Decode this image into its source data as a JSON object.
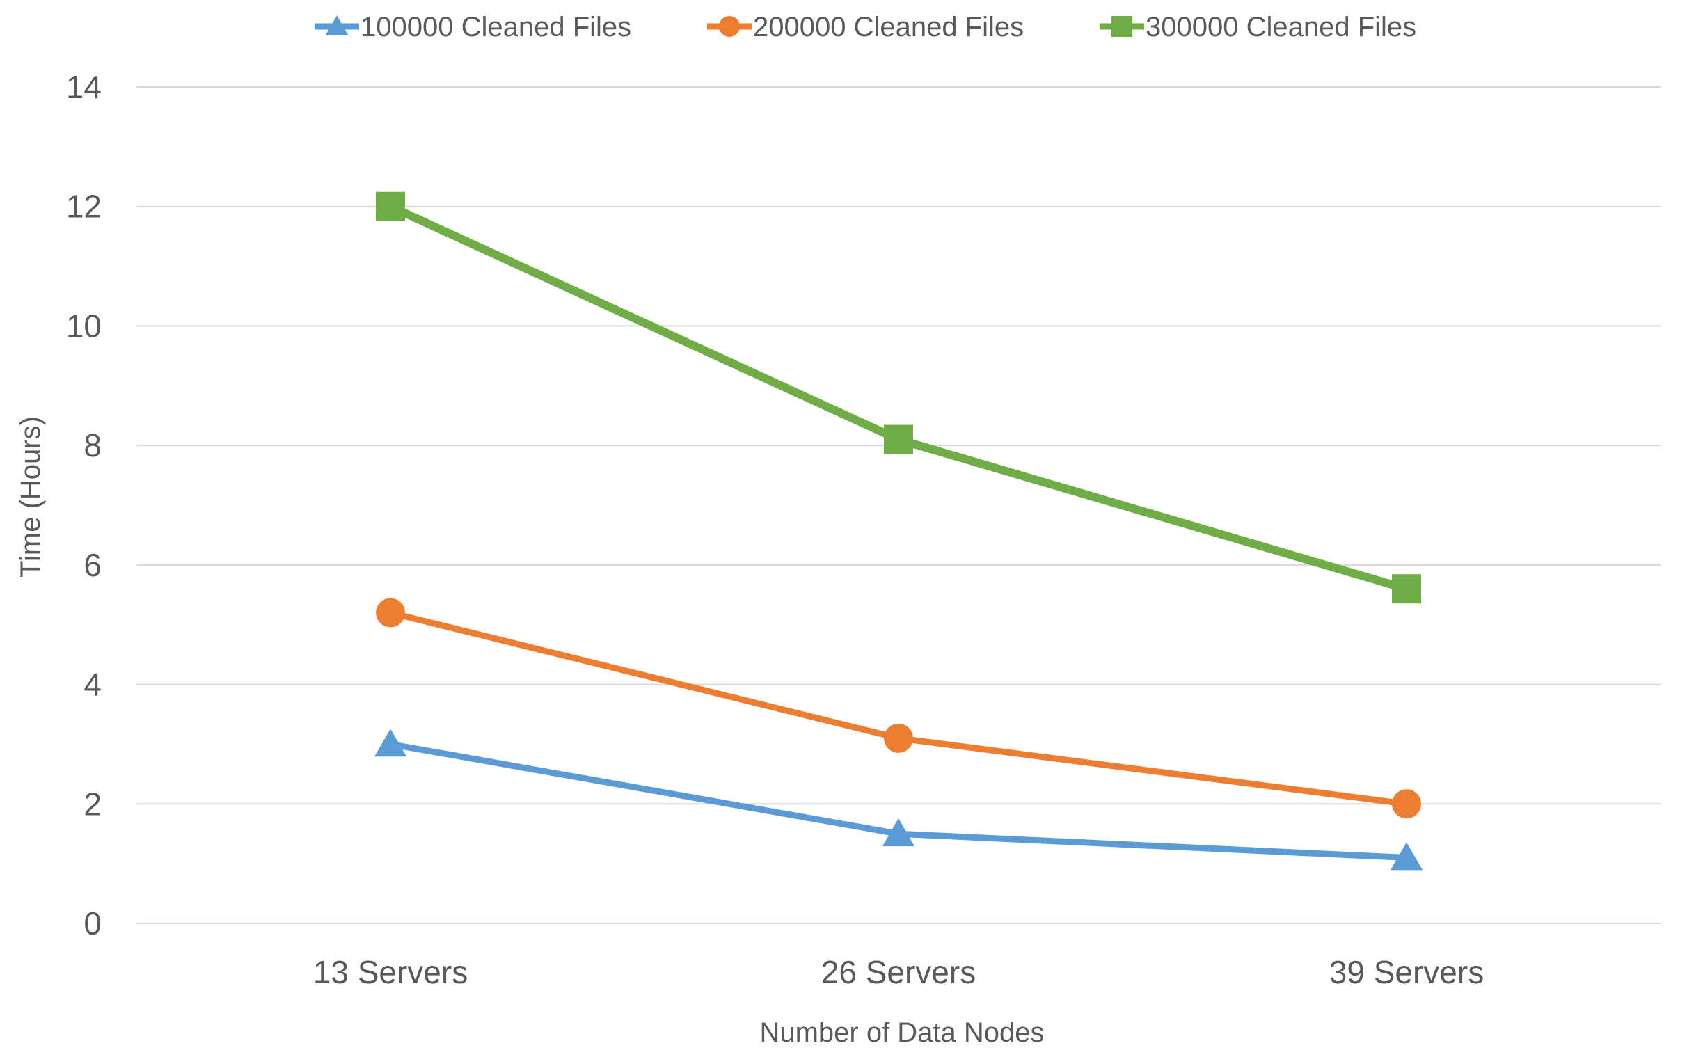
{
  "chart_data": {
    "type": "line",
    "title": "",
    "categories": [
      "13 Servers",
      "26 Servers",
      "39 Servers"
    ],
    "series": [
      {
        "name": "100000 Cleaned Files",
        "values": [
          3.0,
          1.5,
          1.1
        ],
        "color": "#5B9BD5",
        "marker": "triangle"
      },
      {
        "name": "200000 Cleaned Files",
        "values": [
          5.2,
          3.1,
          2.0
        ],
        "color": "#ED7D31",
        "marker": "circle"
      },
      {
        "name": "300000 Cleaned Files",
        "values": [
          12.0,
          8.1,
          5.6
        ],
        "color": "#70AD47",
        "marker": "square"
      }
    ],
    "xlabel": "Number of Data Nodes",
    "ylabel": "Time (Hours)",
    "ylim": [
      0,
      14
    ],
    "yticks": [
      "0",
      "2",
      "4",
      "6",
      "8",
      "10",
      "12",
      "14"
    ],
    "grid": true,
    "legend_position": "top"
  }
}
